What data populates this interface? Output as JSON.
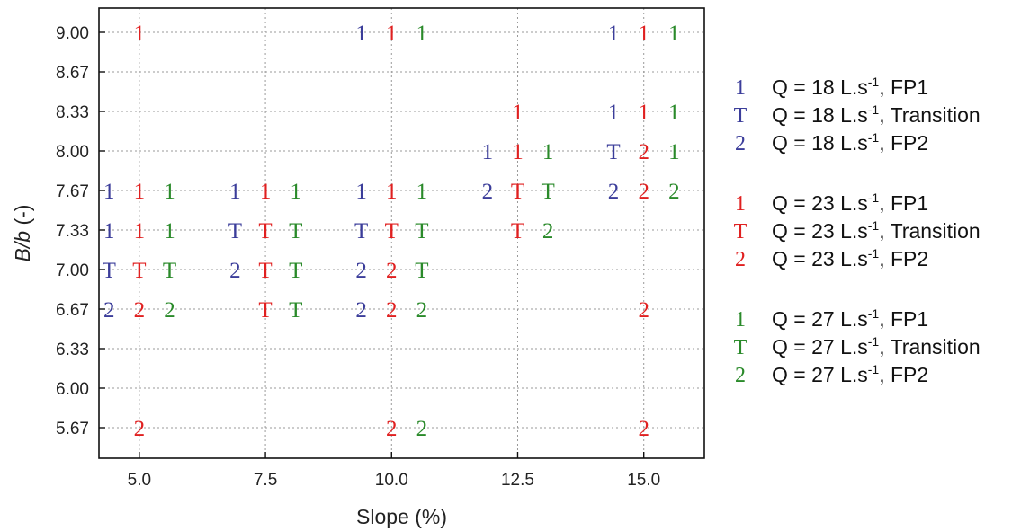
{
  "chart_data": {
    "type": "scatter",
    "xlabel": "Slope (%)",
    "ylabel_main": "B/b",
    "ylabel_unit": " (-)",
    "xlim": [
      4.2,
      16.2
    ],
    "x_ticks": [
      5.0,
      7.5,
      10.0,
      12.5,
      15.0
    ],
    "x_tick_labels": [
      "5.0",
      "7.5",
      "10.0",
      "12.5",
      "15.0"
    ],
    "y_ticks": [
      "5.67",
      "6.00",
      "6.33",
      "6.67",
      "7.00",
      "7.33",
      "7.67",
      "8.00",
      "8.33",
      "8.67",
      "9.00"
    ],
    "grid": true,
    "legend_position": "right",
    "colors": {
      "Q18": "#3b3d9a",
      "Q23": "#e02020",
      "Q27": "#2a8a2a"
    },
    "series": [
      {
        "flow": "Q18",
        "offset": -0.6,
        "points": [
          {
            "slope": 5.0,
            "bb": "7.67",
            "regime": "1"
          },
          {
            "slope": 5.0,
            "bb": "7.33",
            "regime": "1"
          },
          {
            "slope": 5.0,
            "bb": "7.00",
            "regime": "T"
          },
          {
            "slope": 5.0,
            "bb": "6.67",
            "regime": "2"
          },
          {
            "slope": 7.5,
            "bb": "7.67",
            "regime": "1"
          },
          {
            "slope": 7.5,
            "bb": "7.33",
            "regime": "T"
          },
          {
            "slope": 7.5,
            "bb": "7.00",
            "regime": "2"
          },
          {
            "slope": 10.0,
            "bb": "9.00",
            "regime": "1"
          },
          {
            "slope": 10.0,
            "bb": "7.67",
            "regime": "1"
          },
          {
            "slope": 10.0,
            "bb": "7.33",
            "regime": "T"
          },
          {
            "slope": 10.0,
            "bb": "7.00",
            "regime": "2"
          },
          {
            "slope": 10.0,
            "bb": "6.67",
            "regime": "2"
          },
          {
            "slope": 12.5,
            "bb": "8.00",
            "regime": "1"
          },
          {
            "slope": 12.5,
            "bb": "7.67",
            "regime": "2"
          },
          {
            "slope": 15.0,
            "bb": "9.00",
            "regime": "1"
          },
          {
            "slope": 15.0,
            "bb": "8.33",
            "regime": "1"
          },
          {
            "slope": 15.0,
            "bb": "8.00",
            "regime": "T"
          },
          {
            "slope": 15.0,
            "bb": "7.67",
            "regime": "2"
          }
        ]
      },
      {
        "flow": "Q23",
        "offset": 0.0,
        "points": [
          {
            "slope": 5.0,
            "bb": "9.00",
            "regime": "1"
          },
          {
            "slope": 5.0,
            "bb": "7.67",
            "regime": "1"
          },
          {
            "slope": 5.0,
            "bb": "7.33",
            "regime": "1"
          },
          {
            "slope": 5.0,
            "bb": "7.00",
            "regime": "T"
          },
          {
            "slope": 5.0,
            "bb": "6.67",
            "regime": "2"
          },
          {
            "slope": 5.0,
            "bb": "5.67",
            "regime": "2"
          },
          {
            "slope": 7.5,
            "bb": "7.67",
            "regime": "1"
          },
          {
            "slope": 7.5,
            "bb": "7.33",
            "regime": "T"
          },
          {
            "slope": 7.5,
            "bb": "7.00",
            "regime": "T"
          },
          {
            "slope": 7.5,
            "bb": "6.67",
            "regime": "T"
          },
          {
            "slope": 10.0,
            "bb": "9.00",
            "regime": "1"
          },
          {
            "slope": 10.0,
            "bb": "7.67",
            "regime": "1"
          },
          {
            "slope": 10.0,
            "bb": "7.33",
            "regime": "T"
          },
          {
            "slope": 10.0,
            "bb": "7.00",
            "regime": "2"
          },
          {
            "slope": 10.0,
            "bb": "6.67",
            "regime": "2"
          },
          {
            "slope": 10.0,
            "bb": "5.67",
            "regime": "2"
          },
          {
            "slope": 12.5,
            "bb": "8.33",
            "regime": "1"
          },
          {
            "slope": 12.5,
            "bb": "8.00",
            "regime": "1"
          },
          {
            "slope": 12.5,
            "bb": "7.67",
            "regime": "T"
          },
          {
            "slope": 12.5,
            "bb": "7.33",
            "regime": "T"
          },
          {
            "slope": 15.0,
            "bb": "9.00",
            "regime": "1"
          },
          {
            "slope": 15.0,
            "bb": "8.33",
            "regime": "1"
          },
          {
            "slope": 15.0,
            "bb": "8.00",
            "regime": "2"
          },
          {
            "slope": 15.0,
            "bb": "7.67",
            "regime": "2"
          },
          {
            "slope": 15.0,
            "bb": "6.67",
            "regime": "2"
          },
          {
            "slope": 15.0,
            "bb": "5.67",
            "regime": "2"
          }
        ]
      },
      {
        "flow": "Q27",
        "offset": 0.6,
        "points": [
          {
            "slope": 5.0,
            "bb": "7.67",
            "regime": "1"
          },
          {
            "slope": 5.0,
            "bb": "7.33",
            "regime": "1"
          },
          {
            "slope": 5.0,
            "bb": "7.00",
            "regime": "T"
          },
          {
            "slope": 5.0,
            "bb": "6.67",
            "regime": "2"
          },
          {
            "slope": 7.5,
            "bb": "7.67",
            "regime": "1"
          },
          {
            "slope": 7.5,
            "bb": "7.33",
            "regime": "T"
          },
          {
            "slope": 7.5,
            "bb": "7.00",
            "regime": "T"
          },
          {
            "slope": 7.5,
            "bb": "6.67",
            "regime": "T"
          },
          {
            "slope": 10.0,
            "bb": "9.00",
            "regime": "1"
          },
          {
            "slope": 10.0,
            "bb": "7.67",
            "regime": "1"
          },
          {
            "slope": 10.0,
            "bb": "7.33",
            "regime": "T"
          },
          {
            "slope": 10.0,
            "bb": "7.00",
            "regime": "T"
          },
          {
            "slope": 10.0,
            "bb": "6.67",
            "regime": "2"
          },
          {
            "slope": 10.0,
            "bb": "5.67",
            "regime": "2"
          },
          {
            "slope": 12.5,
            "bb": "8.00",
            "regime": "1"
          },
          {
            "slope": 12.5,
            "bb": "7.67",
            "regime": "T"
          },
          {
            "slope": 12.5,
            "bb": "7.33",
            "regime": "2"
          },
          {
            "slope": 15.0,
            "bb": "9.00",
            "regime": "1"
          },
          {
            "slope": 15.0,
            "bb": "8.33",
            "regime": "1"
          },
          {
            "slope": 15.0,
            "bb": "8.00",
            "regime": "1"
          },
          {
            "slope": 15.0,
            "bb": "7.67",
            "regime": "2"
          }
        ]
      }
    ]
  },
  "legend": {
    "groups": [
      {
        "flow": "Q18",
        "items": [
          {
            "symbol": "1",
            "label_pre": "Q = 18 L.s",
            "label_sup": "-1",
            "label_post": ", FP1"
          },
          {
            "symbol": "T",
            "label_pre": "Q = 18 L.s",
            "label_sup": "-1",
            "label_post": ", Transition"
          },
          {
            "symbol": "2",
            "label_pre": "Q = 18 L.s",
            "label_sup": "-1",
            "label_post": ", FP2"
          }
        ]
      },
      {
        "flow": "Q23",
        "items": [
          {
            "symbol": "1",
            "label_pre": "Q = 23 L.s",
            "label_sup": "-1",
            "label_post": ", FP1"
          },
          {
            "symbol": "T",
            "label_pre": "Q = 23 L.s",
            "label_sup": "-1",
            "label_post": ", Transition"
          },
          {
            "symbol": "2",
            "label_pre": "Q = 23 L.s",
            "label_sup": "-1",
            "label_post": ", FP2"
          }
        ]
      },
      {
        "flow": "Q27",
        "items": [
          {
            "symbol": "1",
            "label_pre": "Q = 27 L.s",
            "label_sup": "-1",
            "label_post": ", FP1"
          },
          {
            "symbol": "T",
            "label_pre": "Q = 27 L.s",
            "label_sup": "-1",
            "label_post": ", Transition"
          },
          {
            "symbol": "2",
            "label_pre": "Q = 27 L.s",
            "label_sup": "-1",
            "label_post": ", FP2"
          }
        ]
      }
    ]
  }
}
